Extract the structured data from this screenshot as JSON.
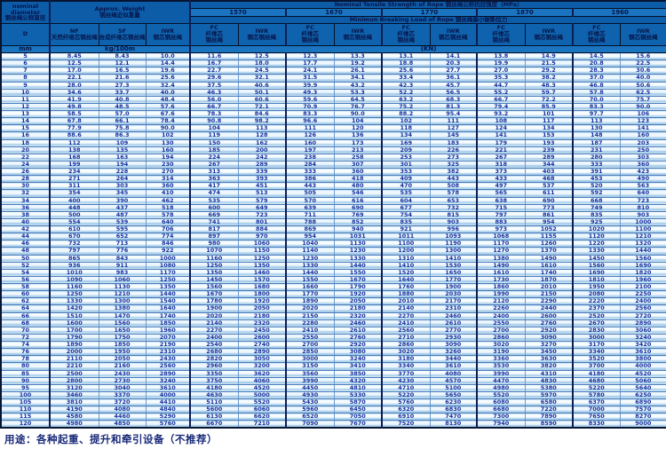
{
  "header": {
    "diameter": "nominal\ndiameter\n钢丝绳公称直径",
    "approx_weight": "Approx. Weight\n钢丝绳近似重量",
    "tensile_title": "Nominal Tensile Strength of Rope 钢丝绳公称抗拉强度（MPa）",
    "strengths": [
      "1570",
      "1670",
      "1770",
      "1870",
      "1960"
    ],
    "breaking_title": "Minimun Breaking Load of Rope 钢丝绳最小破断拉力",
    "weight_cols": [
      "NF\n天然纤维芯钢丝绳",
      "SF\n合成纤维芯钢丝绳",
      "IWR\n钢芯钢丝绳"
    ],
    "fc_label": "FC\n纤维芯\n钢丝绳",
    "iwr_label": "IWR\n钢芯钢丝绳",
    "d_label": "D",
    "mm_label": "mm",
    "kg_label": "kg/100m",
    "kn_label": "(KN)"
  },
  "columns": [
    "D mm",
    "NF kg/100m",
    "SF kg/100m",
    "IWR kg/100m",
    "1570 FC",
    "1570 IWR",
    "1670 FC",
    "1670 IWR",
    "1770 FC",
    "1770 IWR",
    "1870 FC",
    "1870 IWR",
    "1960 FC",
    "1960 IWR"
  ],
  "rows": [
    [
      "5",
      "8.45",
      "8.43",
      "10.0",
      "11.6",
      "12.5",
      "12.3",
      "13.3",
      "13.1",
      "14.1",
      "13.8",
      "14.9",
      "14.5",
      "15.6"
    ],
    [
      "6",
      "12.5",
      "12.1",
      "14.4",
      "16.7",
      "18.0",
      "17.7",
      "19.2",
      "18.8",
      "20.3",
      "19.9",
      "21.5",
      "20.8",
      "22.5"
    ],
    [
      "7",
      "17.0",
      "16.5",
      "19.6",
      "22.7",
      "24.5",
      "24.1",
      "26.1",
      "25.6",
      "27.7",
      "27.0",
      "29.2",
      "28.3",
      "30.6"
    ],
    [
      "8",
      "22.1",
      "21.6",
      "25.6",
      "29.6",
      "32.1",
      "31.5",
      "34.1",
      "33.4",
      "36.1",
      "35.3",
      "38.2",
      "37.0",
      "40.0"
    ],
    [
      "9",
      "28.0",
      "27.3",
      "32.4",
      "37.5",
      "40.6",
      "39.9",
      "43.2",
      "42.3",
      "45.7",
      "44.7",
      "48.3",
      "46.8",
      "50.6"
    ],
    [
      "10",
      "34.6",
      "33.7",
      "40.0",
      "46.3",
      "50.1",
      "49.3",
      "53.3",
      "52.2",
      "56.5",
      "55.2",
      "59.7",
      "57.8",
      "62.5"
    ],
    [
      "11",
      "41.9",
      "40.8",
      "48.4",
      "56.0",
      "60.6",
      "59.6",
      "64.5",
      "63.2",
      "68.3",
      "66.7",
      "72.2",
      "70.0",
      "75.7"
    ],
    [
      "12",
      "49.8",
      "48.5",
      "57.6",
      "66.7",
      "72.1",
      "70.9",
      "76.7",
      "75.2",
      "81.3",
      "79.4",
      "85.9",
      "83.3",
      "90.0"
    ],
    [
      "13",
      "58.5",
      "57.0",
      "67.6",
      "78.3",
      "84.6",
      "83.3",
      "90.0",
      "88.2",
      "95.4",
      "93.2",
      "101",
      "97.7",
      "106"
    ],
    [
      "14",
      "67.8",
      "66.1",
      "78.4",
      "90.8",
      "98.2",
      "96.6",
      "104",
      "102",
      "111",
      "108",
      "117",
      "113",
      "123"
    ],
    [
      "15",
      "77.9",
      "75.8",
      "90.0",
      "104",
      "113",
      "111",
      "120",
      "118",
      "127",
      "124",
      "134",
      "130",
      "141"
    ],
    [
      "16",
      "88.6",
      "86.3",
      "102",
      "119",
      "128",
      "126",
      "136",
      "134",
      "145",
      "141",
      "153",
      "148",
      "160"
    ],
    [
      "18",
      "112",
      "109",
      "130",
      "150",
      "162",
      "160",
      "173",
      "169",
      "183",
      "179",
      "193",
      "187",
      "203"
    ],
    [
      "20",
      "138",
      "135",
      "160",
      "185",
      "200",
      "197",
      "213",
      "209",
      "226",
      "221",
      "239",
      "231",
      "250"
    ],
    [
      "22",
      "168",
      "163",
      "194",
      "224",
      "242",
      "238",
      "258",
      "253",
      "273",
      "267",
      "289",
      "280",
      "303"
    ],
    [
      "24",
      "199",
      "194",
      "230",
      "267",
      "289",
      "284",
      "307",
      "301",
      "325",
      "318",
      "344",
      "333",
      "360"
    ],
    [
      "26",
      "234",
      "228",
      "270",
      "313",
      "339",
      "333",
      "360",
      "353",
      "382",
      "373",
      "403",
      "391",
      "423"
    ],
    [
      "28",
      "271",
      "264",
      "314",
      "363",
      "393",
      "386",
      "418",
      "409",
      "443",
      "433",
      "468",
      "453",
      "490"
    ],
    [
      "30",
      "311",
      "303",
      "360",
      "417",
      "451",
      "443",
      "480",
      "470",
      "508",
      "497",
      "537",
      "520",
      "563"
    ],
    [
      "32",
      "354",
      "345",
      "410",
      "474",
      "513",
      "505",
      "546",
      "535",
      "578",
      "565",
      "611",
      "592",
      "640"
    ],
    [
      "34",
      "400",
      "390",
      "462",
      "535",
      "579",
      "570",
      "616",
      "604",
      "653",
      "638",
      "690",
      "668",
      "723"
    ],
    [
      "36",
      "448",
      "437",
      "518",
      "600",
      "649",
      "639",
      "690",
      "677",
      "732",
      "715",
      "773",
      "749",
      "810"
    ],
    [
      "38",
      "500",
      "487",
      "578",
      "669",
      "723",
      "711",
      "769",
      "754",
      "815",
      "797",
      "861",
      "835",
      "903"
    ],
    [
      "40",
      "554",
      "539",
      "640",
      "741",
      "801",
      "788",
      "852",
      "835",
      "903",
      "883",
      "954",
      "925",
      "1000"
    ],
    [
      "42",
      "610",
      "595",
      "706",
      "817",
      "884",
      "869",
      "940",
      "921",
      "996",
      "973",
      "1052",
      "1020",
      "1100"
    ],
    [
      "44",
      "670",
      "652",
      "774",
      "897",
      "970",
      "954",
      "1031",
      "1011",
      "1093",
      "1068",
      "1155",
      "1120",
      "1210"
    ],
    [
      "46",
      "732",
      "713",
      "846",
      "980",
      "1060",
      "1040",
      "1130",
      "1100",
      "1190",
      "1170",
      "1260",
      "1220",
      "1320"
    ],
    [
      "48",
      "797",
      "776",
      "922",
      "1070",
      "1150",
      "1140",
      "1230",
      "1200",
      "1300",
      "1270",
      "1370",
      "1330",
      "1440"
    ],
    [
      "50",
      "865",
      "843",
      "1000",
      "1160",
      "1250",
      "1230",
      "1330",
      "1310",
      "1410",
      "1380",
      "1490",
      "1450",
      "1560"
    ],
    [
      "52",
      "936",
      "911",
      "1080",
      "1250",
      "1350",
      "1330",
      "1440",
      "1410",
      "1530",
      "1490",
      "1610",
      "1560",
      "1690"
    ],
    [
      "54",
      "1010",
      "983",
      "1170",
      "1350",
      "1460",
      "1440",
      "1550",
      "1520",
      "1650",
      "1610",
      "1740",
      "1690",
      "1820"
    ],
    [
      "56",
      "1090",
      "1060",
      "1250",
      "1450",
      "1570",
      "1550",
      "1670",
      "1640",
      "1770",
      "1730",
      "1870",
      "1810",
      "1960"
    ],
    [
      "58",
      "1160",
      "1130",
      "1350",
      "1560",
      "1680",
      "1660",
      "1790",
      "1760",
      "1900",
      "1860",
      "2010",
      "1950",
      "2100"
    ],
    [
      "60",
      "1250",
      "1210",
      "1440",
      "1670",
      "1800",
      "1770",
      "1920",
      "1880",
      "2030",
      "1990",
      "2150",
      "2080",
      "2250"
    ],
    [
      "62",
      "1330",
      "1300",
      "1540",
      "1780",
      "1920",
      "1890",
      "2050",
      "2010",
      "2170",
      "2120",
      "2290",
      "2220",
      "2400"
    ],
    [
      "64",
      "1420",
      "1380",
      "1640",
      "1900",
      "2050",
      "2020",
      "2180",
      "2140",
      "2310",
      "2260",
      "2440",
      "2370",
      "2560"
    ],
    [
      "66",
      "1510",
      "1470",
      "1740",
      "2020",
      "2180",
      "2150",
      "2320",
      "2270",
      "2460",
      "2400",
      "2600",
      "2520",
      "2720"
    ],
    [
      "68",
      "1600",
      "1560",
      "1850",
      "2140",
      "2320",
      "2280",
      "2460",
      "2410",
      "2610",
      "2550",
      "2760",
      "2670",
      "2890"
    ],
    [
      "70",
      "1700",
      "1650",
      "1960",
      "2270",
      "2450",
      "2410",
      "2610",
      "2560",
      "2770",
      "2700",
      "2920",
      "2830",
      "3060"
    ],
    [
      "72",
      "1790",
      "1750",
      "2070",
      "2400",
      "2600",
      "2550",
      "2760",
      "2710",
      "2930",
      "2860",
      "3090",
      "3000",
      "3240"
    ],
    [
      "74",
      "1890",
      "1850",
      "2190",
      "2540",
      "2740",
      "2700",
      "2920",
      "2860",
      "3090",
      "3020",
      "3270",
      "3170",
      "3420"
    ],
    [
      "76",
      "2000",
      "1950",
      "2310",
      "2680",
      "2890",
      "2850",
      "3080",
      "3020",
      "3260",
      "3190",
      "3450",
      "3340",
      "3610"
    ],
    [
      "78",
      "2110",
      "2050",
      "2430",
      "2820",
      "3050",
      "3000",
      "3240",
      "3180",
      "3440",
      "3360",
      "3630",
      "3520",
      "3800"
    ],
    [
      "80",
      "2210",
      "2160",
      "2560",
      "2960",
      "3200",
      "3150",
      "3410",
      "3340",
      "3610",
      "3530",
      "3820",
      "3700",
      "4000"
    ],
    [
      "85",
      "2500",
      "2430",
      "2890",
      "3350",
      "3620",
      "3560",
      "3850",
      "3770",
      "4080",
      "3990",
      "4310",
      "4180",
      "4520"
    ],
    [
      "90",
      "2800",
      "2730",
      "3240",
      "3750",
      "4060",
      "3990",
      "4320",
      "4230",
      "4570",
      "4470",
      "4830",
      "4680",
      "5060"
    ],
    [
      "95",
      "3120",
      "3040",
      "3610",
      "4180",
      "4520",
      "4450",
      "4810",
      "4710",
      "5100",
      "4980",
      "5380",
      "5220",
      "5640"
    ],
    [
      "100",
      "3460",
      "3370",
      "4000",
      "4630",
      "5000",
      "4930",
      "5330",
      "5220",
      "5650",
      "5520",
      "5970",
      "5780",
      "6250"
    ],
    [
      "105",
      "3810",
      "3720",
      "4410",
      "5110",
      "5520",
      "5430",
      "5870",
      "5760",
      "6230",
      "6080",
      "6580",
      "6370",
      "6890"
    ],
    [
      "110",
      "4190",
      "4080",
      "4840",
      "5600",
      "6060",
      "5960",
      "6450",
      "6320",
      "6830",
      "6680",
      "7220",
      "7000",
      "7570"
    ],
    [
      "115",
      "4580",
      "4460",
      "5290",
      "6130",
      "6620",
      "6520",
      "7050",
      "6910",
      "7470",
      "7300",
      "7890",
      "7650",
      "8270"
    ],
    [
      "120",
      "4980",
      "4850",
      "5760",
      "6670",
      "7210",
      "7090",
      "7670",
      "7520",
      "8130",
      "7940",
      "8590",
      "8330",
      "9000"
    ]
  ],
  "footer": {
    "text": "用途：各种起重、提升和牵引设备（不推荐）"
  },
  "colors": {
    "header_bg": "#0f63ae",
    "header_band_bg": "#1a74c0",
    "header_text": "#07154a",
    "row_bg": "#f7fcff",
    "row_stripe": "#a9cfea",
    "data_text": "#16309c",
    "border_dark": "#0a1e52"
  }
}
